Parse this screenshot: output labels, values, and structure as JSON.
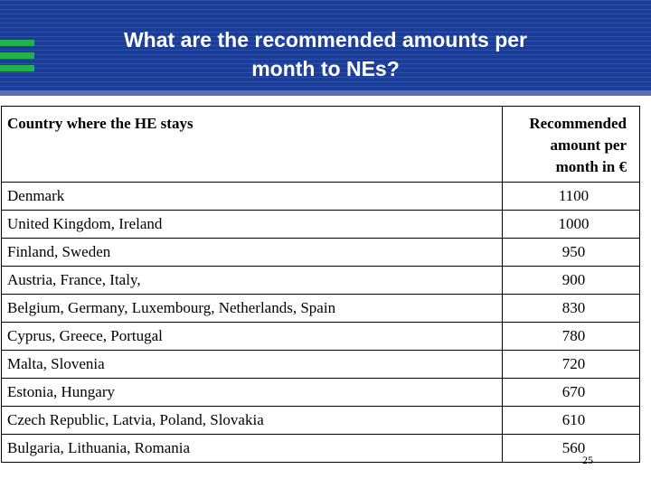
{
  "header": {
    "title_line1": "What are the recommended amounts per",
    "title_line2": "month to NEs?",
    "accent_color": "#21b24b",
    "background_color": "#1a3d9a"
  },
  "table": {
    "columns": [
      "Country where the HE stays",
      "Recommended amount per month in €"
    ],
    "header_amount_lines": [
      "Recommended",
      "amount per",
      "month in €"
    ],
    "rows": [
      {
        "country": "Denmark",
        "amount": "1100"
      },
      {
        "country": "United Kingdom, Ireland",
        "amount": "1000"
      },
      {
        "country": "Finland, Sweden",
        "amount": "950"
      },
      {
        "country": "Austria, France, Italy,",
        "amount": "900"
      },
      {
        "country": "Belgium, Germany, Luxembourg, Netherlands, Spain",
        "amount": "830"
      },
      {
        "country": "Cyprus, Greece, Portugal",
        "amount": "780"
      },
      {
        "country": "Malta, Slovenia",
        "amount": "720"
      },
      {
        "country": "Estonia, Hungary",
        "amount": "670"
      },
      {
        "country": "Czech Republic, Latvia, Poland, Slovakia",
        "amount": "610"
      },
      {
        "country": "Bulgaria, Lithuania, Romania",
        "amount": "560"
      }
    ]
  },
  "page_number": "25"
}
